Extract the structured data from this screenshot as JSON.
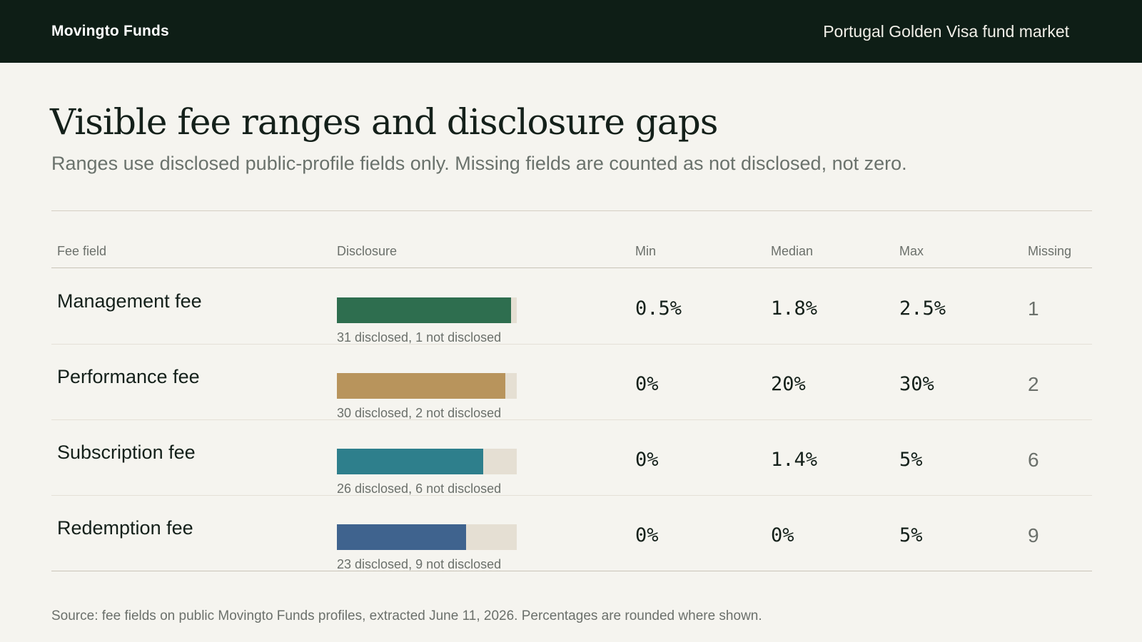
{
  "header": {
    "brand": "Movingto Funds",
    "market": "Portugal Golden Visa fund market"
  },
  "page": {
    "title": "Visible fee ranges and disclosure gaps",
    "subtitle": "Ranges use disclosed public-profile fields only. Missing fields are counted as not disclosed, not zero."
  },
  "table": {
    "headers": {
      "field": "Fee field",
      "disclosure": "Disclosure",
      "min": "Min",
      "median": "Median",
      "max": "Max",
      "missing": "Missing"
    },
    "rows": [
      {
        "field": "Management fee",
        "disclosed": 31,
        "total": 32,
        "caption": "31 disclosed, 1 not disclosed",
        "color": "#2e6e4f",
        "min": "0.5%",
        "median": "1.8%",
        "max": "2.5%",
        "missing": "1"
      },
      {
        "field": "Performance fee",
        "disclosed": 30,
        "total": 32,
        "caption": "30 disclosed, 2 not disclosed",
        "color": "#b8945c",
        "min": "0%",
        "median": "20%",
        "max": "30%",
        "missing": "2"
      },
      {
        "field": "Subscription fee",
        "disclosed": 26,
        "total": 32,
        "caption": "26 disclosed, 6 not disclosed",
        "color": "#2e7f8c",
        "min": "0%",
        "median": "1.4%",
        "max": "5%",
        "missing": "6"
      },
      {
        "field": "Redemption fee",
        "disclosed": 23,
        "total": 32,
        "caption": "23 disclosed, 9 not disclosed",
        "color": "#3f638e",
        "min": "0%",
        "median": "0%",
        "max": "5%",
        "missing": "9"
      }
    ]
  },
  "footer": {
    "source": "Source: fee fields on public Movingto Funds profiles, extracted June 11, 2026. Percentages are rounded where shown."
  }
}
